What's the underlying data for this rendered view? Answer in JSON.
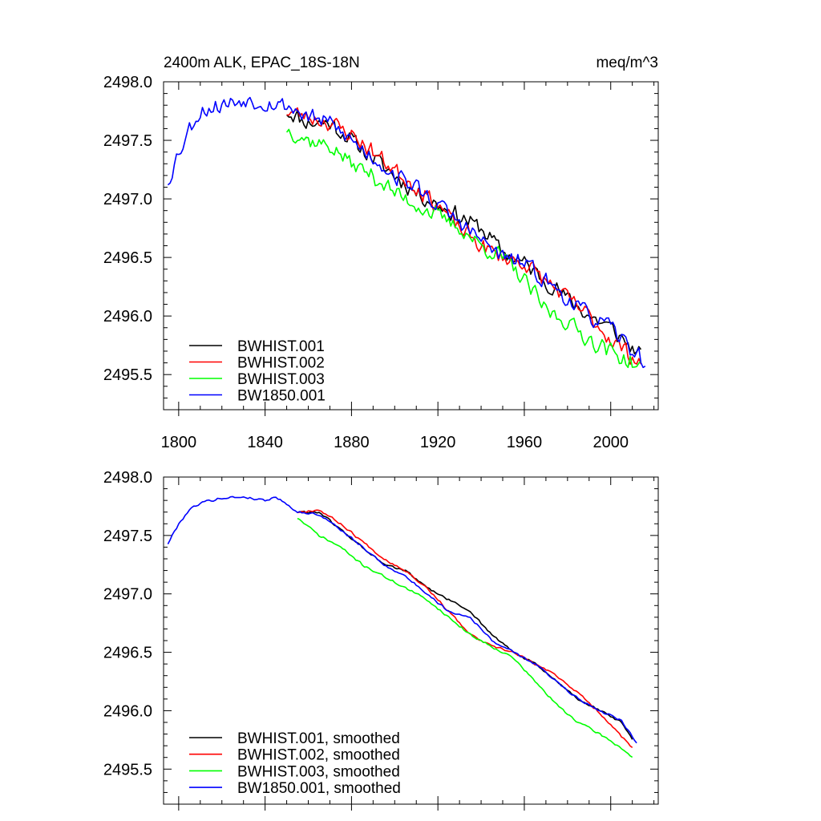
{
  "figure": {
    "title_left": "2400m ALK, EPAC_18S-18N",
    "title_right": "meq/m^3"
  },
  "chart_data": [
    {
      "type": "line",
      "panel": "raw",
      "title": "2400m ALK, EPAC_18S-18N",
      "units": "meq/m^3",
      "xlim": [
        1793,
        2022
      ],
      "ylim": [
        2495.2,
        2498.0
      ],
      "xticks": [
        1800,
        1840,
        1880,
        1920,
        1960,
        2000
      ],
      "yticks": [
        2495.5,
        2496.0,
        2496.5,
        2497.0,
        2497.5,
        2498.0
      ],
      "legend_position": "bottom-left",
      "series": [
        {
          "name": "BWHIST.001",
          "color": "#000000",
          "start": 1850,
          "end": 2014,
          "anchors": [
            [
              1850,
              2497.75
            ],
            [
              1860,
              2497.65
            ],
            [
              1870,
              2497.65
            ],
            [
              1880,
              2497.5
            ],
            [
              1890,
              2497.35
            ],
            [
              1900,
              2497.2
            ],
            [
              1910,
              2497.05
            ],
            [
              1920,
              2496.95
            ],
            [
              1930,
              2496.85
            ],
            [
              1940,
              2496.75
            ],
            [
              1950,
              2496.55
            ],
            [
              1960,
              2496.45
            ],
            [
              1970,
              2496.3
            ],
            [
              1980,
              2496.15
            ],
            [
              1990,
              2496.0
            ],
            [
              2000,
              2495.9
            ],
            [
              2014,
              2495.65
            ]
          ],
          "noise": 0.09,
          "seed": 11
        },
        {
          "name": "BWHIST.002",
          "color": "#ff0000",
          "start": 1850,
          "end": 2014,
          "anchors": [
            [
              1850,
              2497.75
            ],
            [
              1860,
              2497.7
            ],
            [
              1870,
              2497.65
            ],
            [
              1880,
              2497.55
            ],
            [
              1890,
              2497.4
            ],
            [
              1900,
              2497.25
            ],
            [
              1910,
              2497.1
            ],
            [
              1920,
              2496.95
            ],
            [
              1930,
              2496.75
            ],
            [
              1940,
              2496.6
            ],
            [
              1950,
              2496.5
            ],
            [
              1960,
              2496.45
            ],
            [
              1970,
              2496.3
            ],
            [
              1980,
              2496.15
            ],
            [
              1990,
              2496.0
            ],
            [
              2000,
              2495.8
            ],
            [
              2014,
              2495.6
            ]
          ],
          "noise": 0.09,
          "seed": 23
        },
        {
          "name": "BWHIST.003",
          "color": "#00ff00",
          "start": 1850,
          "end": 2014,
          "anchors": [
            [
              1850,
              2497.6
            ],
            [
              1860,
              2497.5
            ],
            [
              1870,
              2497.45
            ],
            [
              1880,
              2497.3
            ],
            [
              1890,
              2497.2
            ],
            [
              1900,
              2497.05
            ],
            [
              1910,
              2496.95
            ],
            [
              1920,
              2496.85
            ],
            [
              1930,
              2496.75
            ],
            [
              1940,
              2496.6
            ],
            [
              1950,
              2496.5
            ],
            [
              1960,
              2496.3
            ],
            [
              1970,
              2496.05
            ],
            [
              1980,
              2495.95
            ],
            [
              1990,
              2495.8
            ],
            [
              2000,
              2495.7
            ],
            [
              2014,
              2495.55
            ]
          ],
          "noise": 0.09,
          "seed": 37
        },
        {
          "name": "BW1850.001",
          "color": "#0000ff",
          "start": 1795,
          "end": 2016,
          "anchors": [
            [
              1795,
              2497.15
            ],
            [
              1800,
              2497.4
            ],
            [
              1805,
              2497.6
            ],
            [
              1810,
              2497.75
            ],
            [
              1820,
              2497.8
            ],
            [
              1830,
              2497.85
            ],
            [
              1840,
              2497.82
            ],
            [
              1850,
              2497.8
            ],
            [
              1860,
              2497.7
            ],
            [
              1870,
              2497.65
            ],
            [
              1880,
              2497.5
            ],
            [
              1890,
              2497.35
            ],
            [
              1900,
              2497.2
            ],
            [
              1910,
              2497.1
            ],
            [
              1920,
              2496.95
            ],
            [
              1930,
              2496.8
            ],
            [
              1940,
              2496.65
            ],
            [
              1950,
              2496.5
            ],
            [
              1960,
              2496.45
            ],
            [
              1970,
              2496.3
            ],
            [
              1980,
              2496.15
            ],
            [
              1990,
              2496.0
            ],
            [
              2000,
              2495.9
            ],
            [
              2016,
              2495.6
            ]
          ],
          "noise": 0.09,
          "seed": 53
        }
      ]
    },
    {
      "type": "line",
      "panel": "smoothed",
      "xlim": [
        1793,
        2022
      ],
      "ylim": [
        2495.2,
        2498.0
      ],
      "xticks": [
        1800,
        1840,
        1880,
        1920,
        1960,
        2000
      ],
      "yticks": [
        2495.5,
        2496.0,
        2496.5,
        2497.0,
        2497.5,
        2498.0
      ],
      "legend_position": "bottom-left",
      "series": [
        {
          "name": "BWHIST.001, smoothed",
          "color": "#000000",
          "start": 1855,
          "end": 2010,
          "anchors": [
            [
              1855,
              2497.7
            ],
            [
              1865,
              2497.7
            ],
            [
              1875,
              2497.55
            ],
            [
              1885,
              2497.4
            ],
            [
              1895,
              2497.25
            ],
            [
              1905,
              2497.2
            ],
            [
              1915,
              2497.05
            ],
            [
              1925,
              2496.95
            ],
            [
              1935,
              2496.85
            ],
            [
              1945,
              2496.65
            ],
            [
              1955,
              2496.5
            ],
            [
              1965,
              2496.4
            ],
            [
              1975,
              2496.25
            ],
            [
              1985,
              2496.1
            ],
            [
              1995,
              2496.0
            ],
            [
              2005,
              2495.9
            ],
            [
              2010,
              2495.75
            ]
          ],
          "noise": 0.012,
          "seed": 61
        },
        {
          "name": "BWHIST.002, smoothed",
          "color": "#ff0000",
          "start": 1855,
          "end": 2010,
          "anchors": [
            [
              1855,
              2497.7
            ],
            [
              1865,
              2497.72
            ],
            [
              1875,
              2497.6
            ],
            [
              1885,
              2497.45
            ],
            [
              1895,
              2497.3
            ],
            [
              1905,
              2497.2
            ],
            [
              1915,
              2497.05
            ],
            [
              1925,
              2496.85
            ],
            [
              1935,
              2496.65
            ],
            [
              1945,
              2496.55
            ],
            [
              1955,
              2496.5
            ],
            [
              1965,
              2496.4
            ],
            [
              1975,
              2496.3
            ],
            [
              1985,
              2496.15
            ],
            [
              1995,
              2495.98
            ],
            [
              2005,
              2495.78
            ],
            [
              2010,
              2495.68
            ]
          ],
          "noise": 0.012,
          "seed": 67
        },
        {
          "name": "BWHIST.003, smoothed",
          "color": "#00ff00",
          "start": 1855,
          "end": 2010,
          "anchors": [
            [
              1855,
              2497.65
            ],
            [
              1865,
              2497.5
            ],
            [
              1875,
              2497.4
            ],
            [
              1885,
              2497.25
            ],
            [
              1895,
              2497.15
            ],
            [
              1905,
              2497.05
            ],
            [
              1915,
              2496.95
            ],
            [
              1925,
              2496.8
            ],
            [
              1935,
              2496.65
            ],
            [
              1945,
              2496.55
            ],
            [
              1955,
              2496.45
            ],
            [
              1965,
              2496.25
            ],
            [
              1975,
              2496.05
            ],
            [
              1985,
              2495.9
            ],
            [
              1995,
              2495.8
            ],
            [
              2005,
              2495.68
            ],
            [
              2010,
              2495.6
            ]
          ],
          "noise": 0.012,
          "seed": 71
        },
        {
          "name": "BW1850.001, smoothed",
          "color": "#0000ff",
          "start": 1795,
          "end": 2012,
          "anchors": [
            [
              1795,
              2497.43
            ],
            [
              1800,
              2497.6
            ],
            [
              1805,
              2497.72
            ],
            [
              1810,
              2497.78
            ],
            [
              1820,
              2497.82
            ],
            [
              1830,
              2497.83
            ],
            [
              1840,
              2497.8
            ],
            [
              1845,
              2497.83
            ],
            [
              1850,
              2497.77
            ],
            [
              1855,
              2497.7
            ],
            [
              1865,
              2497.68
            ],
            [
              1875,
              2497.55
            ],
            [
              1885,
              2497.4
            ],
            [
              1895,
              2497.25
            ],
            [
              1905,
              2497.15
            ],
            [
              1915,
              2497.0
            ],
            [
              1925,
              2496.85
            ],
            [
              1935,
              2496.8
            ],
            [
              1945,
              2496.6
            ],
            [
              1955,
              2496.5
            ],
            [
              1965,
              2496.4
            ],
            [
              1975,
              2496.25
            ],
            [
              1985,
              2496.1
            ],
            [
              1995,
              2496.0
            ],
            [
              2005,
              2495.92
            ],
            [
              2012,
              2495.72
            ]
          ],
          "noise": 0.012,
          "seed": 79
        }
      ]
    }
  ]
}
